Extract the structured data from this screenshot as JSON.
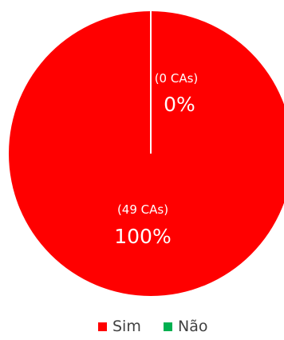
{
  "chart_data": {
    "type": "pie",
    "title": "",
    "slices": [
      {
        "label": "Não",
        "value": 0,
        "count_label": "(0 CAs)",
        "percent_label": "0%",
        "color": "#00b050"
      },
      {
        "label": "Sim",
        "value": 49,
        "count_label": "(49 CAs)",
        "percent_label": "100%",
        "color": "#ff0000"
      }
    ],
    "legend": {
      "placement": "bottom",
      "entries": [
        {
          "label": "Sim",
          "color": "#ff0000"
        },
        {
          "label": "Não",
          "color": "#00b050"
        }
      ]
    }
  }
}
